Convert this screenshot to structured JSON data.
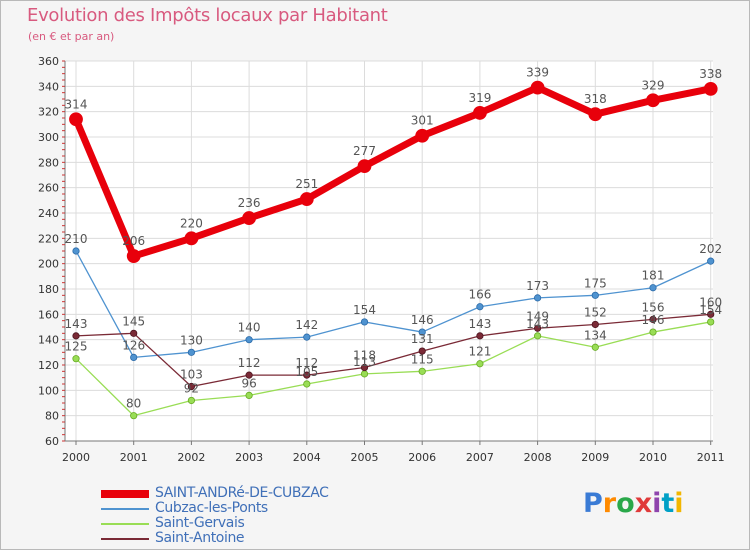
{
  "chart_data": {
    "type": "line",
    "title": "Evolution des Impôts locaux par Habitant",
    "subtitle": "(en € et par an)",
    "xlabel": "",
    "ylabel": "",
    "ylim": [
      60,
      360
    ],
    "y_ticks": [
      60,
      80,
      100,
      120,
      140,
      160,
      180,
      200,
      220,
      240,
      260,
      280,
      300,
      320,
      340,
      360
    ],
    "categories": [
      "2000",
      "2001",
      "2002",
      "2003",
      "2004",
      "2005",
      "2006",
      "2007",
      "2008",
      "2009",
      "2010",
      "2011"
    ],
    "grid": true,
    "legend_position": "bottom-left",
    "series": [
      {
        "name": "SAINT-ANDRé-DE-CUBZAC",
        "color": "#e8000b",
        "values": [
          314,
          206,
          220,
          236,
          251,
          277,
          301,
          319,
          339,
          318,
          329,
          338
        ]
      },
      {
        "name": "Cubzac-les-Ponts",
        "color": "#4f93d0",
        "values": [
          210,
          126,
          130,
          140,
          142,
          154,
          146,
          166,
          173,
          175,
          181,
          202
        ]
      },
      {
        "name": "Saint-Gervais",
        "color": "#99dd55",
        "values": [
          125,
          80,
          92,
          96,
          105,
          113,
          115,
          121,
          143,
          134,
          146,
          154
        ]
      },
      {
        "name": "Saint-Antoine",
        "color": "#7a2a36",
        "values": [
          143,
          145,
          103,
          112,
          112,
          118,
          131,
          143,
          149,
          152,
          156,
          160
        ]
      }
    ]
  },
  "logo": {
    "text": "Proxiti"
  }
}
